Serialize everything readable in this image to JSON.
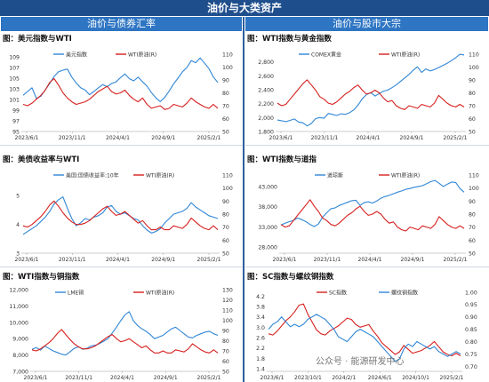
{
  "title": "油价与大类资产",
  "headers": {
    "left": "油价与债券汇率",
    "right": "油价与股市大宗"
  },
  "watermark": "公众号 · 能源研发中心",
  "colors": {
    "blue": "#2f86d6",
    "red": "#d6201e"
  },
  "chart_data": [
    {
      "id": "usd",
      "type": "line",
      "title": "图：美元指数与WTI",
      "x_ticks": [
        "2023/6/1",
        "2023/11/1",
        "2024/4/1",
        "2024/9/1",
        "2025/2/1"
      ],
      "left_axis": {
        "ticks": [
          "109",
          "107",
          "105",
          "103",
          "101",
          "99",
          "97",
          "95"
        ],
        "ylim": [
          95,
          110
        ]
      },
      "right_axis": {
        "ticks": [
          "110",
          "100",
          "90",
          "80",
          "70",
          "60",
          "50"
        ],
        "ylim": [
          50,
          112
        ]
      },
      "series": [
        {
          "name": "美元指数",
          "color": "#2f86d6",
          "axis": "left",
          "values": [
            101.8,
            102.5,
            103.2,
            101.2,
            101.6,
            102.8,
            104.0,
            105.3,
            106.2,
            106.5,
            106.7,
            105.2,
            104.1,
            103.2,
            102.8,
            101.9,
            102.5,
            103.2,
            103.8,
            103.4,
            104.0,
            104.3,
            105.1,
            105.8,
            104.9,
            104.5,
            105.2,
            104.3,
            103.5,
            102.3,
            101.3,
            100.6,
            101.4,
            102.6,
            103.9,
            105.0,
            106.2,
            107.0,
            108.3,
            107.9,
            108.8,
            107.8,
            106.8,
            105.2,
            104.2
          ]
        },
        {
          "name": "WTI原油(R)",
          "color": "#d6201e",
          "axis": "right",
          "values": [
            71,
            70,
            72,
            75,
            78,
            82,
            88,
            91,
            86,
            80,
            76,
            73,
            71,
            72,
            73,
            75,
            78,
            81,
            83,
            85,
            81,
            79,
            80,
            82,
            78,
            75,
            73,
            76,
            71,
            68,
            69,
            70,
            67,
            68,
            71,
            70,
            69,
            72,
            76,
            73,
            71,
            69,
            68,
            71,
            68
          ]
        }
      ]
    },
    {
      "id": "gold",
      "type": "line",
      "title": "图：WTI指数与黄金指数",
      "x_ticks": [
        "2023/6/1",
        "2023/11/1",
        "2024/4/1",
        "2024/9/1",
        "2025/2/1"
      ],
      "left_axis": {
        "ticks": [
          "2,800",
          "2,600",
          "2,400",
          "2,200",
          "2,000",
          "1,800"
        ],
        "ylim": [
          1800,
          2950
        ]
      },
      "right_axis": {
        "ticks": [
          "110",
          "100",
          "90",
          "80",
          "70",
          "60",
          "50"
        ],
        "ylim": [
          50,
          112
        ]
      },
      "series": [
        {
          "name": "COMEX黄金",
          "color": "#2f86d6",
          "axis": "left",
          "values": [
            1965,
            1955,
            1940,
            1960,
            1980,
            1935,
            1925,
            1880,
            1915,
            1985,
            2000,
            1990,
            2060,
            2045,
            2030,
            2055,
            2045,
            2070,
            2110,
            2180,
            2270,
            2330,
            2360,
            2310,
            2345,
            2380,
            2395,
            2430,
            2470,
            2520,
            2570,
            2620,
            2680,
            2730,
            2650,
            2700,
            2670,
            2690,
            2720,
            2750,
            2780,
            2820,
            2860,
            2910,
            2900
          ]
        },
        {
          "name": "WTI原油(R)",
          "color": "#d6201e",
          "axis": "right",
          "values": [
            72,
            70,
            71,
            75,
            79,
            83,
            87,
            90,
            86,
            82,
            77,
            75,
            72,
            71,
            73,
            76,
            79,
            81,
            84,
            86,
            82,
            79,
            80,
            82,
            80,
            76,
            73,
            74,
            70,
            68,
            67,
            70,
            69,
            68,
            71,
            70,
            69,
            72,
            78,
            75,
            72,
            70,
            69,
            71,
            69
          ]
        }
      ]
    },
    {
      "id": "bond",
      "type": "line",
      "title": "图：美债收益率与WTI",
      "x_ticks": [
        "2023/6/1",
        "2023/11/1",
        "2024/4/1",
        "2024/9/1",
        "2025/2/1"
      ],
      "left_axis": {
        "ticks": [
          "5",
          "4",
          "3"
        ],
        "ylim": [
          3,
          5.8
        ]
      },
      "right_axis": {
        "ticks": [
          "110",
          "100",
          "90",
          "80",
          "70",
          "60",
          "50"
        ],
        "ylim": [
          50,
          112
        ]
      },
      "series": [
        {
          "name": "美国:国债收益率:10年",
          "color": "#2f86d6",
          "axis": "left",
          "values": [
            3.65,
            3.75,
            3.85,
            3.95,
            4.1,
            4.25,
            4.45,
            4.7,
            4.85,
            4.95,
            4.55,
            4.2,
            3.95,
            4.05,
            4.2,
            4.15,
            4.25,
            4.3,
            4.4,
            4.6,
            4.65,
            4.45,
            4.35,
            4.4,
            4.3,
            4.2,
            4.15,
            3.95,
            3.8,
            3.7,
            3.75,
            3.85,
            4.05,
            4.2,
            4.35,
            4.4,
            4.45,
            4.55,
            4.75,
            4.6,
            4.5,
            4.4,
            4.3,
            4.25,
            4.2
          ]
        },
        {
          "name": "WTI原油(R)",
          "color": "#d6201e",
          "axis": "right",
          "values": [
            71,
            70,
            72,
            75,
            78,
            82,
            87,
            90,
            86,
            81,
            77,
            74,
            72,
            72,
            73,
            75,
            78,
            81,
            84,
            86,
            82,
            79,
            80,
            82,
            79,
            76,
            73,
            75,
            71,
            68,
            68,
            70,
            68,
            68,
            71,
            70,
            69,
            72,
            77,
            74,
            71,
            69,
            68,
            71,
            68
          ]
        }
      ]
    },
    {
      "id": "spx",
      "type": "line",
      "title": "图：WTI指数与道指",
      "x_ticks": [
        "2023/6/1",
        "2023/11/1",
        "2024/4/1",
        "2024/9/1",
        "2025/2/1"
      ],
      "left_axis": {
        "ticks": [
          "43,000",
          "38,000",
          "33,000",
          "28,000"
        ],
        "ylim": [
          26500,
          46500
        ]
      },
      "right_axis": {
        "ticks": [
          "110",
          "100",
          "90",
          "80",
          "70",
          "60",
          "50"
        ],
        "ylim": [
          50,
          112
        ]
      },
      "series": [
        {
          "name": "道琼斯",
          "color": "#2f86d6",
          "axis": "left",
          "values": [
            33500,
            33900,
            34300,
            34600,
            35200,
            34800,
            34300,
            33600,
            33100,
            33700,
            35400,
            36500,
            37500,
            37700,
            38300,
            38700,
            39100,
            39500,
            39600,
            38300,
            39000,
            39200,
            38900,
            39400,
            40100,
            40500,
            40800,
            41200,
            41600,
            41900,
            42300,
            42500,
            42800,
            43000,
            43200,
            43700,
            44200,
            44500,
            43800,
            43000,
            43600,
            44100,
            44000,
            42500,
            41600
          ]
        },
        {
          "name": "WTI原油(R)",
          "color": "#d6201e",
          "axis": "right",
          "values": [
            72,
            70,
            71,
            75,
            79,
            83,
            87,
            91,
            86,
            82,
            77,
            75,
            72,
            71,
            73,
            76,
            79,
            81,
            84,
            86,
            82,
            79,
            80,
            82,
            80,
            76,
            73,
            74,
            70,
            68,
            67,
            70,
            69,
            68,
            71,
            70,
            69,
            72,
            78,
            75,
            72,
            70,
            69,
            71,
            69
          ]
        }
      ]
    },
    {
      "id": "copper",
      "type": "line",
      "title": "图：WTI指数与铜指数",
      "x_ticks": [
        "2023/6/1",
        "2023/11/1",
        "2024/4/1",
        "2024/9/1",
        "2025/2/1"
      ],
      "left_axis": {
        "ticks": [
          "12,000",
          "11,000",
          "10,000",
          "9,000",
          "8,000",
          "7,000"
        ],
        "ylim": [
          7000,
          12000
        ]
      },
      "right_axis": {
        "ticks": [
          "130",
          "120",
          "110",
          "100",
          "90",
          "80",
          "70",
          "60",
          "50"
        ],
        "ylim": [
          50,
          130
        ]
      },
      "series": [
        {
          "name": "LME铜",
          "color": "#2f86d6",
          "axis": "left",
          "values": [
            8350,
            8450,
            8300,
            8550,
            8400,
            8250,
            8150,
            8050,
            8000,
            8200,
            8400,
            8500,
            8350,
            8400,
            8550,
            8600,
            8700,
            8850,
            9000,
            9350,
            9700,
            10100,
            10450,
            10650,
            10100,
            9800,
            9600,
            9450,
            9250,
            9000,
            9100,
            9200,
            9400,
            9600,
            9700,
            9500,
            9300,
            9100,
            9050,
            9200,
            9300,
            9400,
            9450,
            9300,
            9200
          ]
        },
        {
          "name": "WTI原油(R)",
          "color": "#d6201e",
          "axis": "right",
          "values": [
            71,
            70,
            72,
            75,
            78,
            82,
            87,
            91,
            86,
            81,
            77,
            74,
            72,
            72,
            73,
            75,
            78,
            81,
            84,
            86,
            82,
            79,
            80,
            82,
            79,
            76,
            73,
            75,
            71,
            68,
            68,
            70,
            68,
            68,
            71,
            70,
            69,
            72,
            77,
            74,
            71,
            69,
            68,
            71,
            68
          ]
        }
      ]
    },
    {
      "id": "rebar",
      "type": "line",
      "title": "图：SC指数与螺纹钢指数",
      "x_ticks": [
        "2023/6/1",
        "2023/10/1",
        "2024/2/1",
        "2024/6/1",
        "2024/10/1",
        "2025/2/1"
      ],
      "left_axis": {
        "ticks": [
          "4.2",
          "3.8",
          "3.4",
          "3.0",
          "2.6",
          "2.2",
          "1.8",
          "1.4"
        ],
        "ylim": [
          1.3,
          4.45
        ]
      },
      "right_axis": {
        "ticks": [
          "1.00",
          "0.95",
          "0.90",
          "0.85",
          "0.80",
          "0.75",
          "0.70"
        ],
        "ylim": [
          0.68,
          1.01
        ]
      },
      "series": [
        {
          "name": "SC指数",
          "color": "#d6201e",
          "axis": "left",
          "values": [
            2.75,
            2.7,
            2.85,
            3.05,
            3.25,
            3.4,
            3.6,
            3.85,
            3.9,
            3.5,
            3.2,
            2.9,
            2.75,
            2.7,
            2.85,
            2.95,
            3.05,
            3.2,
            3.35,
            3.3,
            3.1,
            3.0,
            3.05,
            3.1,
            2.85,
            2.65,
            2.4,
            2.25,
            2.1,
            1.95,
            2.05,
            2.3,
            2.15,
            2.0,
            2.05,
            2.1,
            2.2,
            2.3,
            2.45,
            2.25,
            2.05,
            1.95,
            1.9,
            2.0,
            1.9
          ]
        },
        {
          "name": "螺纹钢指数",
          "color": "#2f86d6",
          "axis": "right",
          "values": [
            0.85,
            0.87,
            0.88,
            0.9,
            0.88,
            0.86,
            0.87,
            0.86,
            0.87,
            0.89,
            0.9,
            0.91,
            0.9,
            0.89,
            0.87,
            0.85,
            0.82,
            0.81,
            0.8,
            0.82,
            0.84,
            0.85,
            0.84,
            0.83,
            0.82,
            0.8,
            0.78,
            0.76,
            0.74,
            0.72,
            0.73,
            0.77,
            0.79,
            0.78,
            0.8,
            0.79,
            0.78,
            0.77,
            0.78,
            0.76,
            0.75,
            0.74,
            0.75,
            0.76,
            0.75
          ]
        }
      ]
    }
  ]
}
